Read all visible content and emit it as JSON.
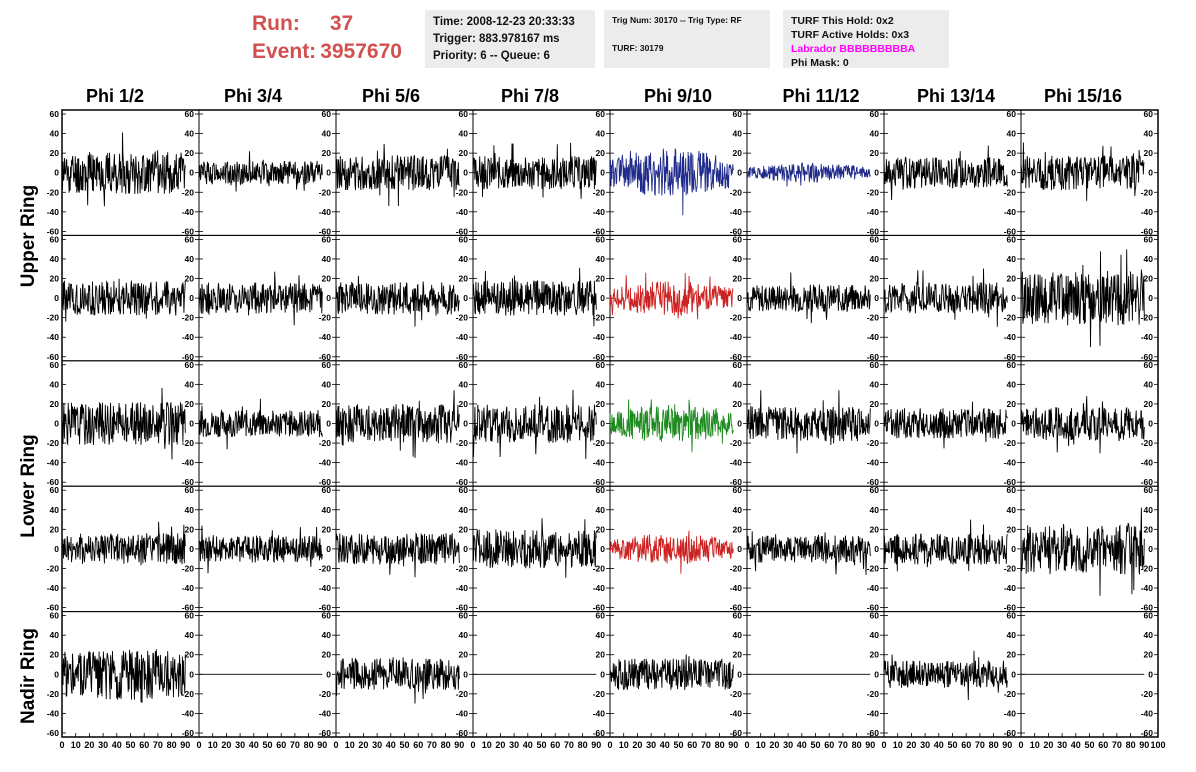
{
  "header": {
    "run_label": "Run:",
    "run_value": "37",
    "event_label": "Event:",
    "event_value": "3957670"
  },
  "time_box": {
    "time": "Time: 2008-12-23 20:33:33",
    "trigger": "Trigger: 883.978167 ms",
    "priority": "Priority: 6 -- Queue: 6"
  },
  "trig_box": {
    "trig": "Trig Num: 30170 -- Trig Type: RF",
    "turf": "TURF: 30179"
  },
  "turf_box": {
    "this_hold": "TURF This Hold: 0x2",
    "active_holds": "TURF Active Holds: 0x3",
    "labrador": "Labrador BBBBBBBBBA",
    "phi_mask": "Phi Mask: 0"
  },
  "columns": [
    "Phi 1/2",
    "Phi 3/4",
    "Phi 5/6",
    "Phi 7/8",
    "Phi 9/10",
    "Phi 11/12",
    "Phi 13/14",
    "Phi 15/16"
  ],
  "ring_labels": {
    "upper": "Upper Ring",
    "lower": "Lower Ring",
    "nadir": "Nadir Ring"
  },
  "colors": {
    "run_text": "#d2504f",
    "labrador_text": "#ff00ff",
    "info_box_bg": "#ececec",
    "trace_default": "#000000",
    "trace_blue": "#1f2a8a",
    "trace_red": "#cc2222",
    "trace_green": "#1f8a1f"
  },
  "chart_data": {
    "type": "line",
    "title": "",
    "xlabel": "",
    "ylabel": "",
    "xlim": [
      0,
      100
    ],
    "ylim": [
      -60,
      60
    ],
    "y_ticks": [
      -60,
      -40,
      -20,
      0,
      20,
      40,
      60
    ],
    "x_ticks": [
      0,
      10,
      20,
      30,
      40,
      50,
      60,
      70,
      80,
      90,
      100
    ],
    "grid": false,
    "rows": 5,
    "cols": 8,
    "samples_per_trace": 260,
    "panels": [
      {
        "row": 0,
        "col": 0,
        "color": "#000000",
        "amplitude": 22,
        "flat": false,
        "seed": 11
      },
      {
        "row": 0,
        "col": 1,
        "color": "#000000",
        "amplitude": 12,
        "flat": false,
        "seed": 12
      },
      {
        "row": 0,
        "col": 2,
        "color": "#000000",
        "amplitude": 18,
        "flat": false,
        "seed": 13
      },
      {
        "row": 0,
        "col": 3,
        "color": "#000000",
        "amplitude": 17,
        "flat": false,
        "seed": 14
      },
      {
        "row": 0,
        "col": 4,
        "color": "#1f2a8a",
        "amplitude": 25,
        "flat": false,
        "seed": 15
      },
      {
        "row": 0,
        "col": 5,
        "color": "#1f2a8a",
        "amplitude": 10,
        "flat": false,
        "seed": 16
      },
      {
        "row": 0,
        "col": 6,
        "color": "#000000",
        "amplitude": 16,
        "flat": false,
        "seed": 17
      },
      {
        "row": 0,
        "col": 7,
        "color": "#000000",
        "amplitude": 18,
        "flat": false,
        "seed": 18
      },
      {
        "row": 1,
        "col": 0,
        "color": "#000000",
        "amplitude": 18,
        "flat": false,
        "seed": 21
      },
      {
        "row": 1,
        "col": 1,
        "color": "#000000",
        "amplitude": 16,
        "flat": false,
        "seed": 22
      },
      {
        "row": 1,
        "col": 2,
        "color": "#000000",
        "amplitude": 17,
        "flat": false,
        "seed": 23
      },
      {
        "row": 1,
        "col": 3,
        "color": "#000000",
        "amplitude": 18,
        "flat": false,
        "seed": 24
      },
      {
        "row": 1,
        "col": 4,
        "color": "#cc2222",
        "amplitude": 18,
        "flat": false,
        "seed": 25
      },
      {
        "row": 1,
        "col": 5,
        "color": "#000000",
        "amplitude": 14,
        "flat": false,
        "seed": 26
      },
      {
        "row": 1,
        "col": 6,
        "color": "#000000",
        "amplitude": 16,
        "flat": false,
        "seed": 27
      },
      {
        "row": 1,
        "col": 7,
        "color": "#000000",
        "amplitude": 28,
        "flat": false,
        "seed": 28
      },
      {
        "row": 2,
        "col": 0,
        "color": "#000000",
        "amplitude": 22,
        "flat": false,
        "seed": 31
      },
      {
        "row": 2,
        "col": 1,
        "color": "#000000",
        "amplitude": 14,
        "flat": false,
        "seed": 32
      },
      {
        "row": 2,
        "col": 2,
        "color": "#000000",
        "amplitude": 20,
        "flat": false,
        "seed": 33
      },
      {
        "row": 2,
        "col": 3,
        "color": "#000000",
        "amplitude": 20,
        "flat": false,
        "seed": 34
      },
      {
        "row": 2,
        "col": 4,
        "color": "#1f8a1f",
        "amplitude": 20,
        "flat": false,
        "seed": 35
      },
      {
        "row": 2,
        "col": 5,
        "color": "#000000",
        "amplitude": 18,
        "flat": false,
        "seed": 36
      },
      {
        "row": 2,
        "col": 6,
        "color": "#000000",
        "amplitude": 16,
        "flat": false,
        "seed": 37
      },
      {
        "row": 2,
        "col": 7,
        "color": "#000000",
        "amplitude": 17,
        "flat": false,
        "seed": 38
      },
      {
        "row": 3,
        "col": 0,
        "color": "#000000",
        "amplitude": 16,
        "flat": false,
        "seed": 41
      },
      {
        "row": 3,
        "col": 1,
        "color": "#000000",
        "amplitude": 14,
        "flat": false,
        "seed": 42
      },
      {
        "row": 3,
        "col": 2,
        "color": "#000000",
        "amplitude": 16,
        "flat": false,
        "seed": 43
      },
      {
        "row": 3,
        "col": 3,
        "color": "#000000",
        "amplitude": 20,
        "flat": false,
        "seed": 44
      },
      {
        "row": 3,
        "col": 4,
        "color": "#cc2222",
        "amplitude": 16,
        "flat": false,
        "seed": 45
      },
      {
        "row": 3,
        "col": 5,
        "color": "#000000",
        "amplitude": 14,
        "flat": false,
        "seed": 46
      },
      {
        "row": 3,
        "col": 6,
        "color": "#000000",
        "amplitude": 16,
        "flat": false,
        "seed": 47
      },
      {
        "row": 3,
        "col": 7,
        "color": "#000000",
        "amplitude": 26,
        "flat": false,
        "seed": 48
      },
      {
        "row": 4,
        "col": 0,
        "color": "#000000",
        "amplitude": 26,
        "flat": false,
        "seed": 51
      },
      {
        "row": 4,
        "col": 1,
        "color": "#000000",
        "amplitude": 0,
        "flat": true,
        "seed": 52
      },
      {
        "row": 4,
        "col": 2,
        "color": "#000000",
        "amplitude": 16,
        "flat": false,
        "seed": 53
      },
      {
        "row": 4,
        "col": 3,
        "color": "#000000",
        "amplitude": 0,
        "flat": true,
        "seed": 54
      },
      {
        "row": 4,
        "col": 4,
        "color": "#000000",
        "amplitude": 16,
        "flat": false,
        "seed": 55
      },
      {
        "row": 4,
        "col": 5,
        "color": "#000000",
        "amplitude": 0,
        "flat": true,
        "seed": 56
      },
      {
        "row": 4,
        "col": 6,
        "color": "#000000",
        "amplitude": 14,
        "flat": false,
        "seed": 57
      },
      {
        "row": 4,
        "col": 7,
        "color": "#000000",
        "amplitude": 0,
        "flat": true,
        "seed": 58
      }
    ]
  }
}
